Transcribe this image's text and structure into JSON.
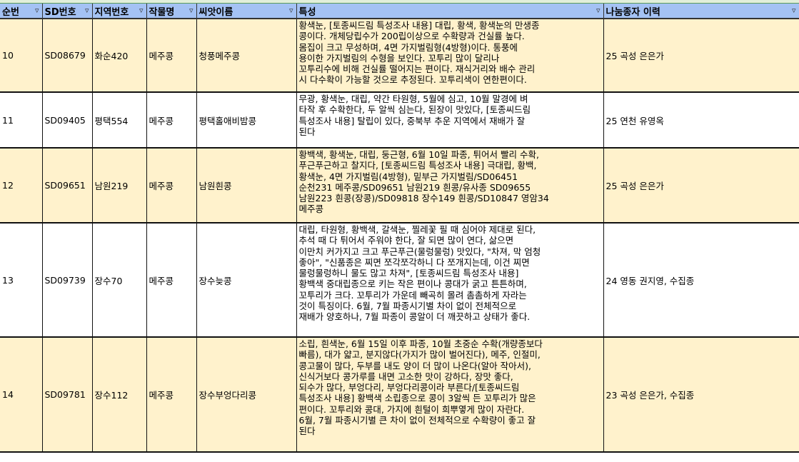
{
  "columns": [
    {
      "label": "순번"
    },
    {
      "label": "SD번호"
    },
    {
      "label": "지역번호"
    },
    {
      "label": "작물명"
    },
    {
      "label": "씨앗이름"
    },
    {
      "label": "특성"
    },
    {
      "label": "나눔종자 이력"
    }
  ],
  "colors": {
    "header": "#a4c2f4",
    "row_alt": "#fff2cc",
    "row": "#ffffff"
  },
  "rows": [
    {
      "no": "10",
      "sd": "SD08679",
      "region": "화순420",
      "crop": "메주콩",
      "seed": "청풍메주콩",
      "desc": "황색눈, [토종씨드림 특성조사 내용] 대립, 황색, 황색눈의 만생종\n콩이다. 개체당립수가 200립이상으로 수확량과 건실률 높다.\n몸집이 크고 무성하며, 4면 가지벌림형(4방형)이다. 통풍에\n용이한 가지벌림의 수형을 보인다. 꼬투리 많이 달리나\n꼬투리수에 비해 건실률 떨어지는 편이다. 재식거리와 배수 관리\n시 다수확이 가능할 것으로 추정된다. 꼬투리색이 연한편이다.",
      "history": "25 곡성 은은가"
    },
    {
      "no": "11",
      "sd": "SD09405",
      "region": "평택554",
      "crop": "메주콩",
      "seed": "평택홀애비밤콩",
      "desc": "무광, 황색눈, 대립, 약간 타원형, 5월에 심고, 10월 말경에 벼\n타작 후 수확한다, 두 알씩 심는다, 된장이 맛있다, [토종씨드림\n특성조사 내용] 탈립이 있다, 중북부 추운 지역에서 재배가 잘\n된다",
      "history": "25 연천 유영옥"
    },
    {
      "no": "12",
      "sd": "SD09651",
      "region": "남원219",
      "crop": "메주콩",
      "seed": "남원흰콩",
      "desc": "황백색, 황색눈, 대립, 둥근형, 6월 10일 파종, 튀어서 빨리 수확,\n푸근푸근하고 찰지다, [토종씨드림 특성조사 내용] 극대립, 황백,\n황색눈, 4면 가지벌림(4방형), 밑부근 가지벌림/SD06451\n순천231 메주콩/SD09651  남원219 흰콩/유사종 SD09655\n남원223 흰콩(장콩)/SD09818  장수149 흰콩/SD10847  영암34\n메주콩",
      "history": "25 곡성 은은가"
    },
    {
      "no": "13",
      "sd": "SD09739",
      "region": "장수70",
      "crop": "메주콩",
      "seed": "장수늦콩",
      "desc": "대립, 타원형, 황백색, 갈색눈, 찔레꽃 필 때 심어야 제대로 된다,\n추석 때 다 튀어서 주워야 한다, 잘 되면 많이 연다, 삶으면\n이만치 커가지고 크고 푸근푸근(물렁물렁) 맛있다, \"차져, 막 엄청\n좋아\", \"신품종은 찌면 쪼각쪼각하니 다 쪼개지는데, 이건 찌면\n물렁물렁하니 물도 많고 차져\", [토종씨드림 특성조사 내용]\n황백색 중대립종으로 키는 작은 편이나 콩대가 굵고 튼튼하며,\n꼬투리가 크다. 꼬투리가 가운데 빼곡히 몰려 촘촘하게 자라는\n것이 특징이다. 6월, 7월 파종시기별 차이 없이 전체적으로\n재배가 양호하나, 7월 파종이 콩알이 더 깨끗하고 상태가 좋다.",
      "history": "24 영동 권지영, 수집종"
    },
    {
      "no": "14",
      "sd": "SD09781",
      "region": "장수112",
      "crop": "메주콩",
      "seed": "장수부엉다리콩",
      "desc": "소립, 흰색눈, 6월 15일 이후 파종, 10월 초중순 수확(개량종보다\n빠름), 대가 얇고, 분지않다(가지가 많이 벌어진다), 메주, 인절미,\n콩고물이 많다, 두부를 내도 양이 더 많이 나온다(알아 작아서),\n신식거보다 콩가루를 내면 고소한 맛이 강하다, 장맛 좋다,\n되수가 많다, 부엉다리, 부엉다리콩이라 부른다/[토종씨드림\n특성조사 내용]  황백색 소립종으로 콩이 3알씩 든 꼬투리가 많은\n편이다. 꼬투리와 콩대, 가지에 흰털이 희뿌옇게 많이 자란다.\n6월, 7월 파종시기별 큰 차이 없이 전체적으로 수확량이 좋고 잘\n된다",
      "history": "23 곡성 은은가, 수집종"
    }
  ]
}
